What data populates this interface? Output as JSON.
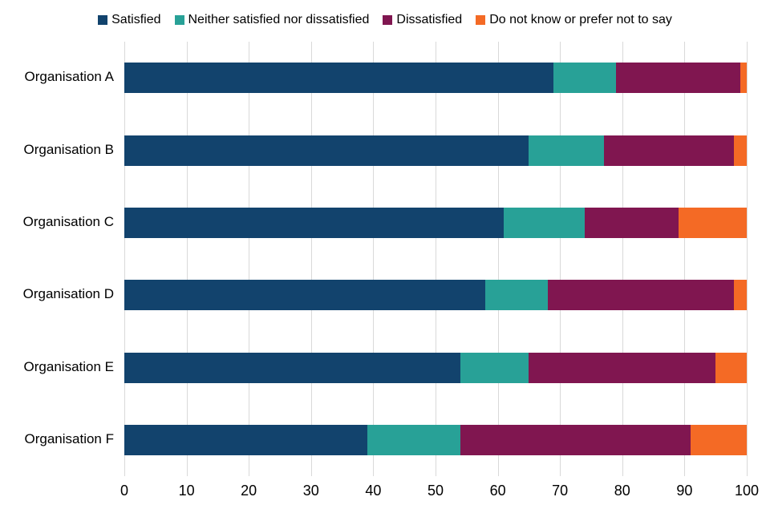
{
  "chart_data": {
    "type": "bar",
    "orientation": "horizontal",
    "stacked": true,
    "title": "",
    "xlabel": "",
    "ylabel": "",
    "categories": [
      "Organisation A",
      "Organisation B",
      "Organisation C",
      "Organisation D",
      "Organisation E",
      "Organisation F"
    ],
    "series": [
      {
        "name": "Satisfied",
        "color": "#12436D",
        "values": [
          69,
          65,
          61,
          58,
          54,
          39
        ]
      },
      {
        "name": "Neither satisfied nor dissatisfied",
        "color": "#28A197",
        "values": [
          10,
          12,
          13,
          10,
          11,
          15
        ]
      },
      {
        "name": "Dissatisfied",
        "color": "#801650",
        "values": [
          20,
          21,
          15,
          30,
          30,
          37
        ]
      },
      {
        "name": "Do not know or prefer not to say",
        "color": "#F46A25",
        "values": [
          1,
          2,
          11,
          2,
          5,
          9
        ]
      }
    ],
    "xlim": [
      0,
      100
    ],
    "x_ticks": [
      0,
      10,
      20,
      30,
      40,
      50,
      60,
      70,
      80,
      90,
      100
    ],
    "grid": "vertical",
    "gridline_color": "#d9d9d9",
    "text_color": "#000000",
    "legend_position": "top"
  }
}
